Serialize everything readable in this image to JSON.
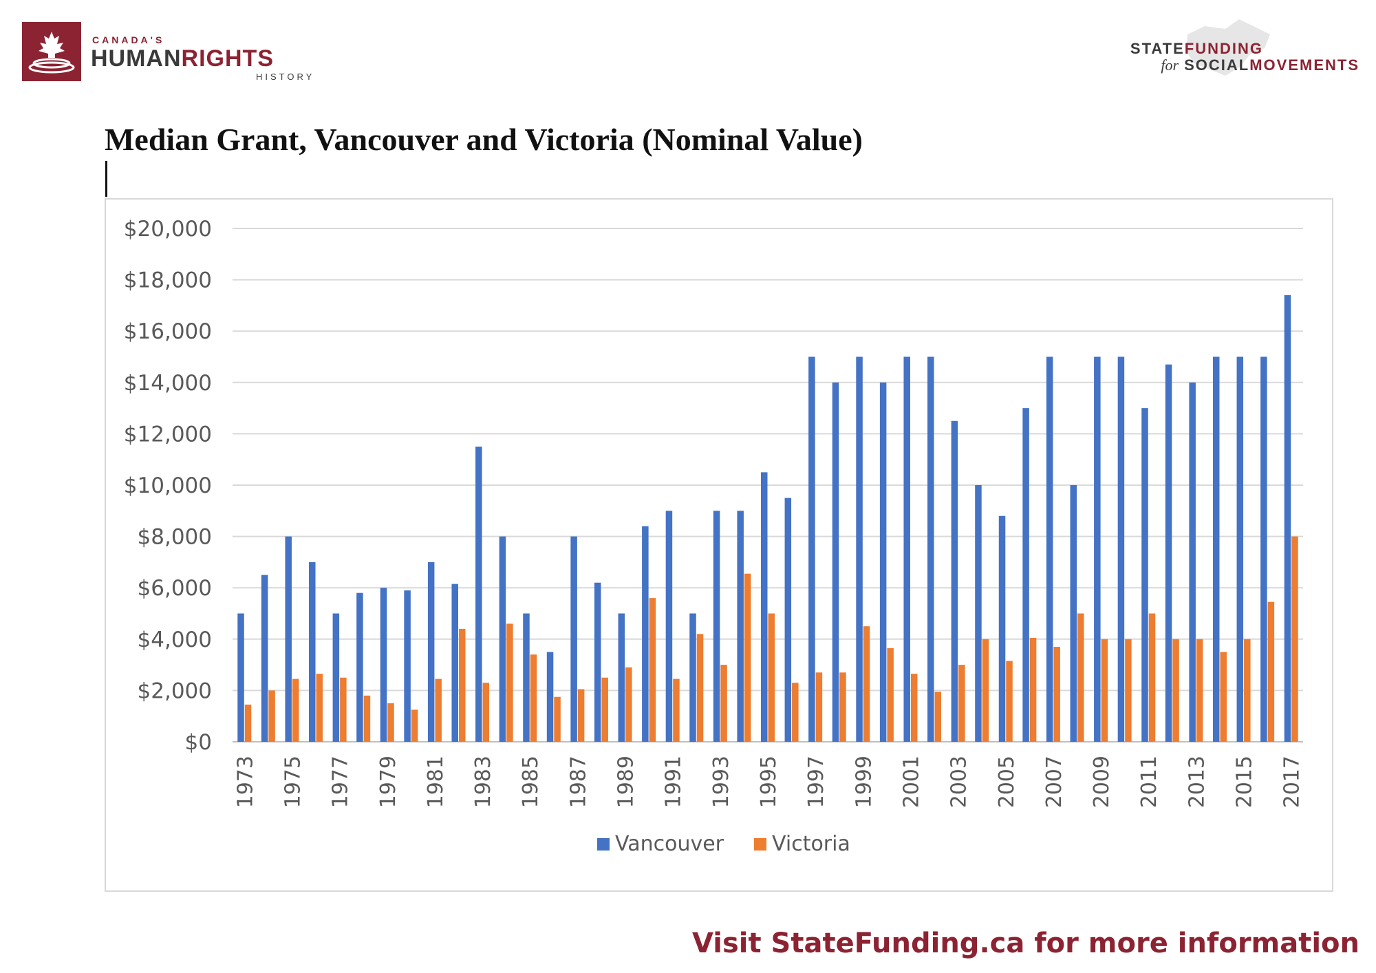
{
  "branding": {
    "left_small": "CANADA'S",
    "left_big_dark": "HUMAN",
    "left_big_red": "RIGHTS",
    "left_sub": "HISTORY",
    "right_line1_dark": "STATE",
    "right_line1_red": "FUNDING",
    "right_line2_for": "for",
    "right_line2_dark": "SOCIAL",
    "right_line2_red": "MOVEMENTS",
    "accent_color": "#8c2332"
  },
  "footer": {
    "text": "Visit StateFunding.ca for more information"
  },
  "chart_data": {
    "type": "bar",
    "title": "Median Grant, Vancouver and Victoria (Nominal Value)",
    "xlabel": "",
    "ylabel": "",
    "ylim": [
      0,
      20000
    ],
    "yticks": [
      0,
      2000,
      4000,
      6000,
      8000,
      10000,
      12000,
      14000,
      16000,
      18000,
      20000
    ],
    "ytick_labels": [
      "$0",
      "$2,000",
      "$4,000",
      "$6,000",
      "$8,000",
      "$10,000",
      "$12,000",
      "$14,000",
      "$16,000",
      "$18,000",
      "$20,000"
    ],
    "grid": true,
    "legend_position": "bottom",
    "categories": [
      "1973",
      "1974",
      "1975",
      "1976",
      "1977",
      "1978",
      "1979",
      "1980",
      "1981",
      "1982",
      "1983",
      "1984",
      "1985",
      "1986",
      "1987",
      "1988",
      "1989",
      "1990",
      "1991",
      "1992",
      "1993",
      "1994",
      "1995",
      "1996",
      "1997",
      "1998",
      "1999",
      "2000",
      "2001",
      "2002",
      "2003",
      "2004",
      "2005",
      "2006",
      "2007",
      "2008",
      "2009",
      "2010",
      "2011",
      "2012",
      "2013",
      "2014",
      "2015",
      "2016",
      "2017"
    ],
    "xtick_labels_shown": [
      "1973",
      "1975",
      "1977",
      "1979",
      "1981",
      "1983",
      "1985",
      "1987",
      "1989",
      "1991",
      "1993",
      "1995",
      "1997",
      "1999",
      "2001",
      "2003",
      "2005",
      "2007",
      "2009",
      "2011",
      "2013",
      "2015",
      "2017"
    ],
    "series": [
      {
        "name": "Vancouver",
        "color": "#4472c4",
        "values": [
          5000,
          6500,
          8000,
          7000,
          5000,
          5800,
          6000,
          5900,
          7000,
          6150,
          11500,
          8000,
          5000,
          3500,
          8000,
          6200,
          5000,
          8400,
          9000,
          5000,
          9000,
          9000,
          10500,
          9500,
          15000,
          14000,
          15000,
          14000,
          15000,
          15000,
          12500,
          10000,
          8800,
          13000,
          15000,
          10000,
          15000,
          15000,
          13000,
          14700,
          14000,
          15000,
          15000,
          15000,
          17400
        ]
      },
      {
        "name": "Victoria",
        "color": "#ed7d31",
        "values": [
          1450,
          2000,
          2450,
          2650,
          2500,
          1800,
          1500,
          1250,
          2450,
          4400,
          2300,
          4600,
          3400,
          1750,
          2050,
          2500,
          2900,
          5600,
          2450,
          4200,
          3000,
          6550,
          5000,
          2300,
          2700,
          2700,
          4500,
          3650,
          2650,
          1950,
          3000,
          4000,
          3150,
          4050,
          3700,
          5000,
          4000,
          4000,
          5000,
          4000,
          4000,
          3500,
          4000,
          5450,
          8000
        ]
      }
    ]
  }
}
